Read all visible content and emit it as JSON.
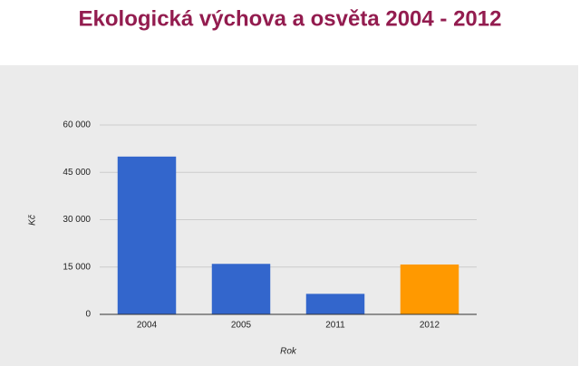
{
  "chart_data": {
    "type": "bar",
    "title": "Ekologická výchova a osvěta 2004 - 2012",
    "x_label": "Rok",
    "y_label": "Kč",
    "categories": [
      "2004",
      "2005",
      "2011",
      "2012"
    ],
    "values": [
      50000,
      16000,
      6500,
      15800
    ],
    "colors": [
      "#3366cc",
      "#3366cc",
      "#3366cc",
      "#ff9900"
    ],
    "ylim": [
      0,
      60000
    ],
    "yticks": [
      0,
      {
        "value": 15000,
        "label": "15 000"
      },
      {
        "value": 30000,
        "label": "30 000"
      },
      {
        "value": 45000,
        "label": "45 000"
      },
      {
        "value": 60000,
        "label": "60 000"
      }
    ],
    "grid": true
  }
}
